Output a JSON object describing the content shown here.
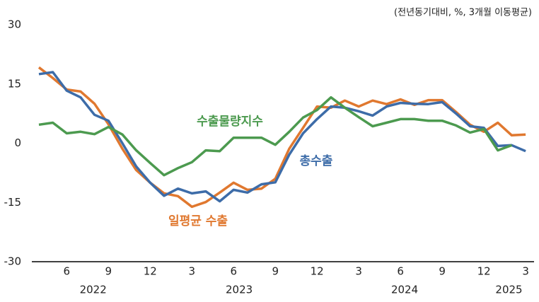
{
  "chart_data": {
    "type": "line",
    "note": "(전년동기대비, %, 3개월 이동평균)",
    "categories": [
      null,
      null,
      "6",
      null,
      null,
      "9",
      null,
      null,
      "12",
      null,
      null,
      "3",
      null,
      null,
      "6",
      null,
      null,
      "9",
      null,
      null,
      "12",
      null,
      null,
      "3",
      null,
      null,
      "6",
      null,
      null,
      "9",
      null,
      null,
      "12",
      null,
      null,
      "3"
    ],
    "years": [
      "2022",
      "2023",
      "2024",
      "2025"
    ],
    "ylim": [
      -30,
      30
    ],
    "yticks": [
      -30,
      -15,
      0,
      15,
      30
    ],
    "grid": false,
    "series": [
      {
        "name": "총수출",
        "color": "#3d6ca8",
        "values": [
          17.5,
          18,
          13.3,
          11.6,
          7.2,
          5.7,
          0,
          -5.9,
          -10,
          -13.3,
          -11.5,
          -12.7,
          -12.2,
          -14.7,
          -11.8,
          -12.5,
          -10.4,
          -9.9,
          -2.9,
          2.5,
          6.1,
          9.3,
          9,
          8.1,
          7,
          9.3,
          10.2,
          10,
          9.9,
          10.4,
          7.5,
          4.3,
          3.9,
          -0.7,
          -0.5,
          -2
        ]
      },
      {
        "name": "일평균 수출",
        "color": "#e0782f",
        "values": [
          19.2,
          16.5,
          13.6,
          13.1,
          10,
          4.8,
          -1.4,
          -6.8,
          -10,
          -12.7,
          -13.4,
          -16.1,
          -14.9,
          -12.5,
          -10,
          -11.8,
          -11.5,
          -9,
          -1.4,
          3.9,
          9.3,
          9,
          10.8,
          9.3,
          10.8,
          9.9,
          11.1,
          9.7,
          10.9,
          10.9,
          7.9,
          4.7,
          2.9,
          5.2,
          2,
          2.2
        ]
      },
      {
        "name": "수출물량지수",
        "color": "#4c9a4f",
        "values": [
          4.7,
          5.2,
          2.5,
          2.9,
          2.3,
          4.1,
          2.2,
          -1.8,
          -5,
          -8.1,
          -6.3,
          -4.8,
          -1.8,
          -2,
          1.4,
          1.4,
          1.4,
          -0.4,
          2.9,
          6.5,
          8.4,
          11.6,
          9,
          6.6,
          4.3,
          5.2,
          6.1,
          6.1,
          5.7,
          5.7,
          4.5,
          2.7,
          3.6,
          -1.8,
          -0.5,
          null
        ]
      }
    ]
  }
}
